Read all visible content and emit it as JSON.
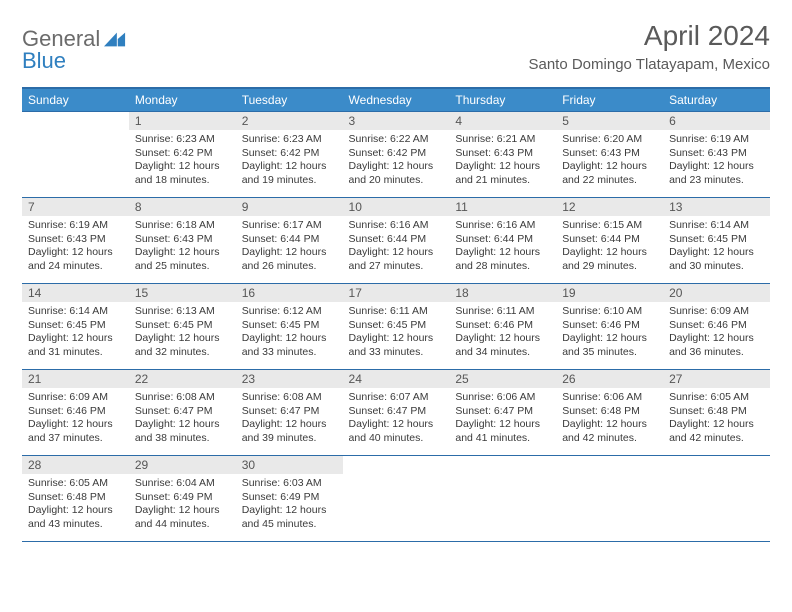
{
  "logo": {
    "part1": "General",
    "part2": "Blue"
  },
  "title": "April 2024",
  "location": "Santo Domingo Tlatayapam, Mexico",
  "colors": {
    "header_bg": "#3b8bc9",
    "header_border": "#2c6ca8",
    "daynum_bg": "#e9e9e9",
    "text_dark": "#3a3a3a",
    "text_grey": "#5a5a5a",
    "logo_grey": "#6b6b6b",
    "logo_blue": "#2f7fbf"
  },
  "weekdays": [
    "Sunday",
    "Monday",
    "Tuesday",
    "Wednesday",
    "Thursday",
    "Friday",
    "Saturday"
  ],
  "weeks": [
    [
      null,
      {
        "n": "1",
        "sr": "6:23 AM",
        "ss": "6:42 PM",
        "dl": "12 hours and 18 minutes."
      },
      {
        "n": "2",
        "sr": "6:23 AM",
        "ss": "6:42 PM",
        "dl": "12 hours and 19 minutes."
      },
      {
        "n": "3",
        "sr": "6:22 AM",
        "ss": "6:42 PM",
        "dl": "12 hours and 20 minutes."
      },
      {
        "n": "4",
        "sr": "6:21 AM",
        "ss": "6:43 PM",
        "dl": "12 hours and 21 minutes."
      },
      {
        "n": "5",
        "sr": "6:20 AM",
        "ss": "6:43 PM",
        "dl": "12 hours and 22 minutes."
      },
      {
        "n": "6",
        "sr": "6:19 AM",
        "ss": "6:43 PM",
        "dl": "12 hours and 23 minutes."
      }
    ],
    [
      {
        "n": "7",
        "sr": "6:19 AM",
        "ss": "6:43 PM",
        "dl": "12 hours and 24 minutes."
      },
      {
        "n": "8",
        "sr": "6:18 AM",
        "ss": "6:43 PM",
        "dl": "12 hours and 25 minutes."
      },
      {
        "n": "9",
        "sr": "6:17 AM",
        "ss": "6:44 PM",
        "dl": "12 hours and 26 minutes."
      },
      {
        "n": "10",
        "sr": "6:16 AM",
        "ss": "6:44 PM",
        "dl": "12 hours and 27 minutes."
      },
      {
        "n": "11",
        "sr": "6:16 AM",
        "ss": "6:44 PM",
        "dl": "12 hours and 28 minutes."
      },
      {
        "n": "12",
        "sr": "6:15 AM",
        "ss": "6:44 PM",
        "dl": "12 hours and 29 minutes."
      },
      {
        "n": "13",
        "sr": "6:14 AM",
        "ss": "6:45 PM",
        "dl": "12 hours and 30 minutes."
      }
    ],
    [
      {
        "n": "14",
        "sr": "6:14 AM",
        "ss": "6:45 PM",
        "dl": "12 hours and 31 minutes."
      },
      {
        "n": "15",
        "sr": "6:13 AM",
        "ss": "6:45 PM",
        "dl": "12 hours and 32 minutes."
      },
      {
        "n": "16",
        "sr": "6:12 AM",
        "ss": "6:45 PM",
        "dl": "12 hours and 33 minutes."
      },
      {
        "n": "17",
        "sr": "6:11 AM",
        "ss": "6:45 PM",
        "dl": "12 hours and 33 minutes."
      },
      {
        "n": "18",
        "sr": "6:11 AM",
        "ss": "6:46 PM",
        "dl": "12 hours and 34 minutes."
      },
      {
        "n": "19",
        "sr": "6:10 AM",
        "ss": "6:46 PM",
        "dl": "12 hours and 35 minutes."
      },
      {
        "n": "20",
        "sr": "6:09 AM",
        "ss": "6:46 PM",
        "dl": "12 hours and 36 minutes."
      }
    ],
    [
      {
        "n": "21",
        "sr": "6:09 AM",
        "ss": "6:46 PM",
        "dl": "12 hours and 37 minutes."
      },
      {
        "n": "22",
        "sr": "6:08 AM",
        "ss": "6:47 PM",
        "dl": "12 hours and 38 minutes."
      },
      {
        "n": "23",
        "sr": "6:08 AM",
        "ss": "6:47 PM",
        "dl": "12 hours and 39 minutes."
      },
      {
        "n": "24",
        "sr": "6:07 AM",
        "ss": "6:47 PM",
        "dl": "12 hours and 40 minutes."
      },
      {
        "n": "25",
        "sr": "6:06 AM",
        "ss": "6:47 PM",
        "dl": "12 hours and 41 minutes."
      },
      {
        "n": "26",
        "sr": "6:06 AM",
        "ss": "6:48 PM",
        "dl": "12 hours and 42 minutes."
      },
      {
        "n": "27",
        "sr": "6:05 AM",
        "ss": "6:48 PM",
        "dl": "12 hours and 42 minutes."
      }
    ],
    [
      {
        "n": "28",
        "sr": "6:05 AM",
        "ss": "6:48 PM",
        "dl": "12 hours and 43 minutes."
      },
      {
        "n": "29",
        "sr": "6:04 AM",
        "ss": "6:49 PM",
        "dl": "12 hours and 44 minutes."
      },
      {
        "n": "30",
        "sr": "6:03 AM",
        "ss": "6:49 PM",
        "dl": "12 hours and 45 minutes."
      },
      null,
      null,
      null,
      null
    ]
  ],
  "labels": {
    "sunrise": "Sunrise:",
    "sunset": "Sunset:",
    "daylight": "Daylight:"
  }
}
